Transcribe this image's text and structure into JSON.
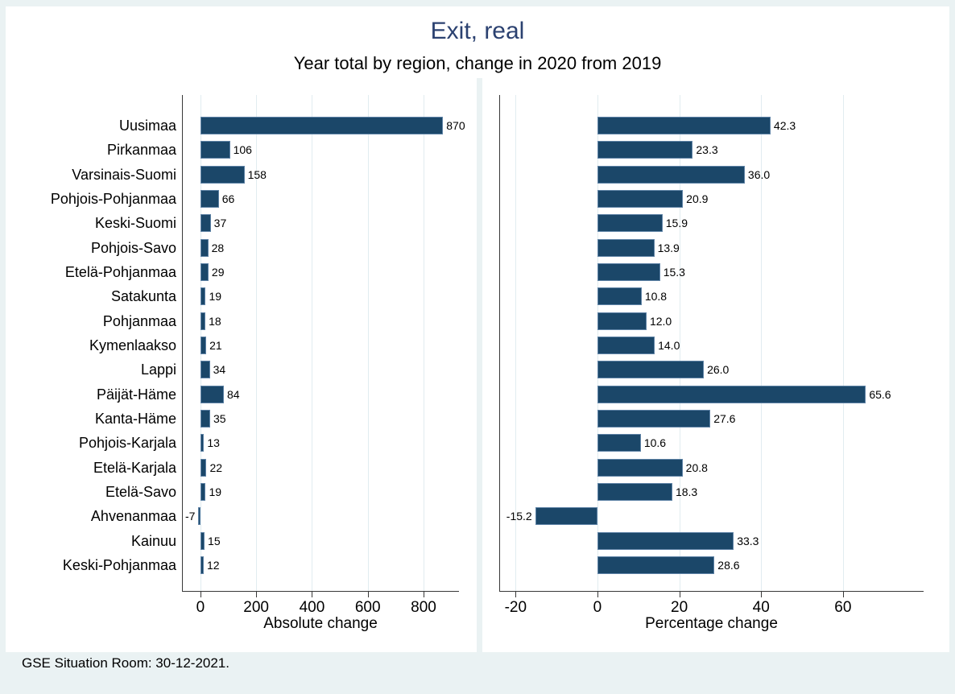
{
  "figure": {
    "title": "Exit, real",
    "subtitle": "Year total by region, change in 2020 from 2019",
    "note": "GSE Situation Room: 30-12-2021."
  },
  "colors": {
    "background": "#eaf2f3",
    "panel_background": "#ffffff",
    "bar_fill": "#1b4769",
    "bar_border": "#5f83a6",
    "gridline": "#e1ecf0",
    "axis_line": "#383838",
    "title_text": "#2b4170",
    "body_text": "#000000"
  },
  "chart_data": [
    {
      "type": "bar",
      "orientation": "horizontal",
      "panel": "left",
      "xlabel": "Absolute change",
      "categories": [
        "Uusimaa",
        "Pirkanmaa",
        "Varsinais-Suomi",
        "Pohjois-Pohjanmaa",
        "Keski-Suomi",
        "Pohjois-Savo",
        "Etelä-Pohjanmaa",
        "Satakunta",
        "Pohjanmaa",
        "Kymenlaakso",
        "Lappi",
        "Päijät-Häme",
        "Kanta-Häme",
        "Pohjois-Karjala",
        "Etelä-Karjala",
        "Etelä-Savo",
        "Ahvenanmaa",
        "Kainuu",
        "Keski-Pohjanmaa"
      ],
      "values": [
        870,
        106,
        158,
        66,
        37,
        28,
        29,
        19,
        18,
        21,
        34,
        84,
        35,
        13,
        22,
        19,
        -7,
        15,
        12
      ],
      "value_labels": [
        "870",
        "106",
        "158",
        "66",
        "37",
        "28",
        "29",
        "19",
        "18",
        "21",
        "34",
        "84",
        "35",
        "13",
        "22",
        "19",
        "-7",
        "15",
        "12"
      ],
      "xticks": [
        0,
        200,
        400,
        600,
        800
      ],
      "xtick_labels": [
        "0",
        "200",
        "400",
        "600",
        "800"
      ],
      "xlim": [
        -66,
        927
      ],
      "grid": true,
      "show_category_labels": true
    },
    {
      "type": "bar",
      "orientation": "horizontal",
      "panel": "right",
      "xlabel": "Percentage change",
      "categories": [
        "Uusimaa",
        "Pirkanmaa",
        "Varsinais-Suomi",
        "Pohjois-Pohjanmaa",
        "Keski-Suomi",
        "Pohjois-Savo",
        "Etelä-Pohjanmaa",
        "Satakunta",
        "Pohjanmaa",
        "Kymenlaakso",
        "Lappi",
        "Päijät-Häme",
        "Kanta-Häme",
        "Pohjois-Karjala",
        "Etelä-Karjala",
        "Etelä-Savo",
        "Ahvenanmaa",
        "Kainuu",
        "Keski-Pohjanmaa"
      ],
      "values": [
        42.3,
        23.3,
        36.0,
        20.9,
        15.9,
        13.9,
        15.3,
        10.8,
        12.0,
        14.0,
        26.0,
        65.6,
        27.6,
        10.6,
        20.8,
        18.3,
        -15.2,
        33.3,
        28.6
      ],
      "value_labels": [
        "42.3",
        "23.3",
        "36.0",
        "20.9",
        "15.9",
        "13.9",
        "15.3",
        "10.8",
        "12.0",
        "14.0",
        "26.0",
        "65.6",
        "27.6",
        "10.6",
        "20.8",
        "18.3",
        "-15.2",
        "33.3",
        "28.6"
      ],
      "xticks": [
        -20,
        0,
        20,
        40,
        60
      ],
      "xtick_labels": [
        "-20",
        "0",
        "20",
        "40",
        "60"
      ],
      "xlim": [
        -24,
        79.7
      ],
      "grid": true,
      "show_category_labels": false
    }
  ]
}
